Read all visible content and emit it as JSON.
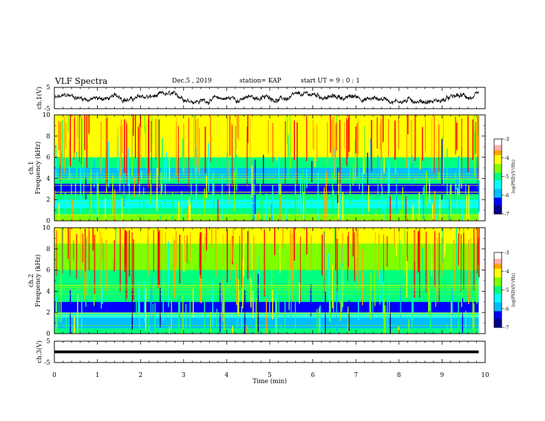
{
  "header": {
    "title": "VLF Spectra",
    "date": "Dec.5  , 2019",
    "station": "station= KAP",
    "start": "start  UT =   9 : 0  : 1"
  },
  "chart_data": [
    {
      "type": "line",
      "panel": "ch1-waveform",
      "ylabel": "ch.1(V)",
      "ylim": [
        -5,
        5
      ],
      "y_ticks": [
        "5",
        "-5"
      ],
      "xlim": [
        0,
        10
      ],
      "values_note": "noisy signal fluctuating roughly between -2 and 2 V",
      "y_approx_range": [
        -2,
        2
      ],
      "color": "#000000"
    },
    {
      "type": "heatmap",
      "panel": "ch1-spectrogram",
      "ylabel": "ch.1\nFrequency  (kHz)",
      "ylabel_line1": "ch.1",
      "ylabel_line2": "Frequency  (kHz)",
      "ylim": [
        0,
        10
      ],
      "y_ticks": [
        "0",
        "2",
        "4",
        "6",
        "8",
        "10"
      ],
      "xlim": [
        0,
        9.85
      ],
      "colorbar": {
        "label": "log(PSD)(V²/Hz)",
        "range": [
          -7,
          -3
        ],
        "ticks": [
          "-3",
          "-4",
          "-5",
          "-6",
          "-7"
        ]
      },
      "bands": [
        {
          "from": 0,
          "to": 0.6,
          "level": -4.6
        },
        {
          "from": 0.6,
          "to": 1.2,
          "level": -5.2
        },
        {
          "from": 1.2,
          "to": 2.0,
          "level": -5.4
        },
        {
          "from": 2.0,
          "to": 2.5,
          "level": -4.8
        },
        {
          "from": 2.5,
          "to": 3.5,
          "level": -6.3
        },
        {
          "from": 3.5,
          "to": 4.0,
          "level": -5.0
        },
        {
          "from": 4.0,
          "to": 5.0,
          "level": -5.8
        },
        {
          "from": 5.0,
          "to": 6.0,
          "level": -4.9
        },
        {
          "from": 6.0,
          "to": 8.5,
          "level": -4.3
        },
        {
          "from": 8.5,
          "to": 10.0,
          "level": -4.1
        }
      ]
    },
    {
      "type": "heatmap",
      "panel": "ch2-spectrogram",
      "ylabel": "ch.2\nFrequency  (kHz)",
      "ylabel_line1": "ch.2",
      "ylabel_line2": "Frequency  (kHz)",
      "ylim": [
        0,
        10
      ],
      "y_ticks": [
        "0",
        "2",
        "4",
        "6",
        "8",
        "10"
      ],
      "xlim": [
        0,
        9.85
      ],
      "colorbar": {
        "label": "log(PSD)(V²/Hz)",
        "range": [
          -7,
          -3
        ],
        "ticks": [
          "-3",
          "-4",
          "-5",
          "-6",
          "-7"
        ]
      },
      "bands": [
        {
          "from": 0,
          "to": 0.5,
          "level": -4.9
        },
        {
          "from": 0.5,
          "to": 1.5,
          "level": -6.0
        },
        {
          "from": 1.5,
          "to": 2.0,
          "level": -5.3
        },
        {
          "from": 2.0,
          "to": 3.0,
          "level": -6.4
        },
        {
          "from": 3.0,
          "to": 4.0,
          "level": -5.2
        },
        {
          "from": 4.0,
          "to": 6.0,
          "level": -4.9
        },
        {
          "from": 6.0,
          "to": 8.5,
          "level": -4.4
        },
        {
          "from": 8.5,
          "to": 10.0,
          "level": -4.2
        }
      ]
    },
    {
      "type": "line",
      "panel": "ch3-waveform",
      "ylabel": "ch.3(V)",
      "ylim": [
        -5,
        5
      ],
      "y_ticks": [
        "5",
        "-5"
      ],
      "xlim": [
        0,
        9.85
      ],
      "values_note": "nearly constant thick line",
      "y_value": 0,
      "color": "#000000"
    }
  ],
  "x_axis": {
    "label": "Time  (min)",
    "ticks": [
      "0",
      "1",
      "2",
      "3",
      "4",
      "5",
      "6",
      "7",
      "8",
      "9",
      "10"
    ],
    "range": [
      0,
      10
    ]
  },
  "colormap": [
    "#00008b",
    "#0000ff",
    "#00bfff",
    "#00ffff",
    "#00ff7f",
    "#7fff00",
    "#ffff00",
    "#ffa500",
    "#ff0000",
    "#ffffff"
  ]
}
